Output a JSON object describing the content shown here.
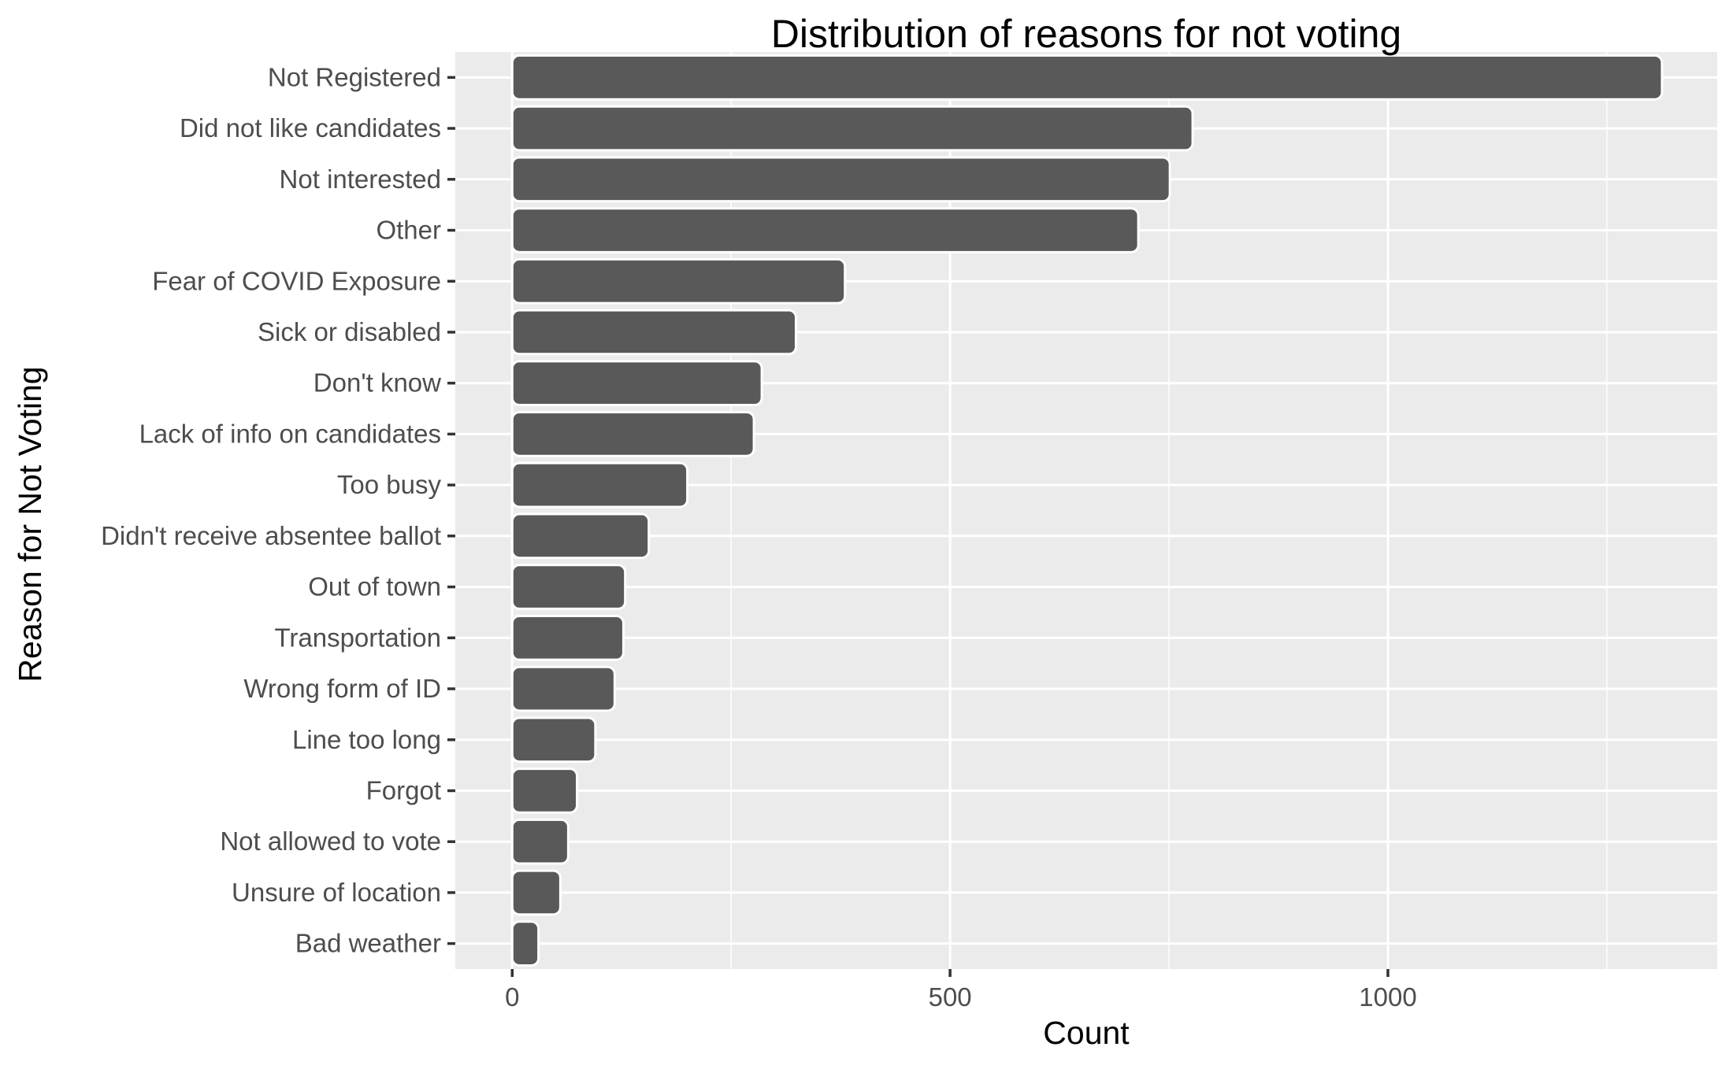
{
  "chart_data": {
    "type": "bar",
    "orientation": "horizontal",
    "title": "Distribution of reasons for not voting",
    "xlabel": "Count",
    "ylabel": "Reason for Not Voting",
    "xlim": [
      -65,
      1376
    ],
    "xticks": [
      0,
      500,
      1000
    ],
    "grid": true,
    "categories": [
      "Not Registered",
      "Did not like candidates",
      "Not interested",
      "Other",
      "Fear of COVID Exposure",
      "Sick or disabled",
      "Don't know",
      "Lack of info on candidates",
      "Too busy",
      "Didn't receive absentee ballot",
      "Out of town",
      "Transportation",
      "Wrong form of ID",
      "Line too long",
      "Forgot",
      "Not allowed to vote",
      "Unsure of location",
      "Bad weather"
    ],
    "values": [
      1313,
      777,
      751,
      715,
      380,
      324,
      285,
      276,
      200,
      156,
      129,
      127,
      117,
      95,
      74,
      64,
      55,
      30
    ],
    "colors": {
      "bar": "#595959",
      "bar_outline": "#ffffff",
      "panel": "#ebebeb",
      "grid": "#ffffff"
    }
  }
}
